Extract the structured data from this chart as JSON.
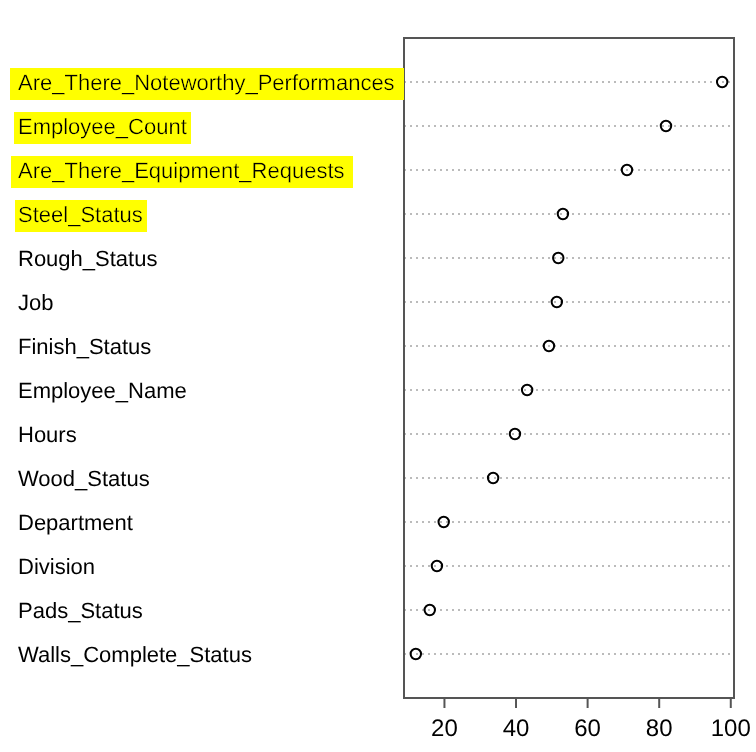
{
  "chart_data": {
    "type": "scatter",
    "orientation": "horizontal",
    "categories": [
      "Are_There_Noteworthy_Performances",
      "Employee_Count",
      "Are_There_Equipment_Requests",
      "Steel_Status",
      "Rough_Status",
      "Job",
      "Finish_Status",
      "Employee_Name",
      "Hours",
      "Wood_Status",
      "Department",
      "Division",
      "Pads_Status",
      "Walls_Complete_Status"
    ],
    "values": [
      97.6,
      81.9,
      71.0,
      53.1,
      51.8,
      51.4,
      49.2,
      43.1,
      39.7,
      33.6,
      19.8,
      17.9,
      15.9,
      12.0
    ],
    "color": "#000000",
    "marker": "circle",
    "xlim": [
      8.7,
      100.9
    ],
    "xticks": [
      20,
      40,
      60,
      80,
      100
    ],
    "grid": "y"
  }
}
